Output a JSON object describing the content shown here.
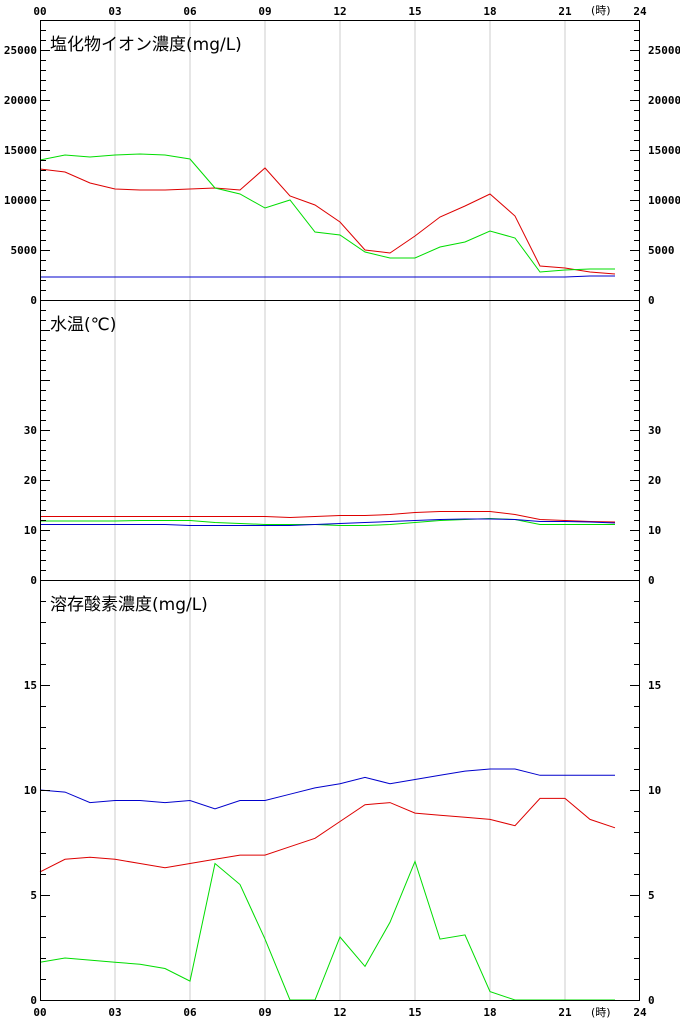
{
  "x_axis": {
    "ticks": [
      "00",
      "03",
      "06",
      "09",
      "12",
      "15",
      "18",
      "21",
      "24"
    ],
    "unit": "(時)",
    "range": [
      0,
      24
    ]
  },
  "colors": {
    "red": "#dd0000",
    "green": "#00dd00",
    "blue": "#0000cc",
    "grid": "#cccccc",
    "axis": "#000000"
  },
  "chart_data": [
    {
      "type": "line",
      "title": "塩化物イオン濃度(mg/L)",
      "xlim": [
        0,
        24
      ],
      "ylim": [
        0,
        28000
      ],
      "yticks": [
        0,
        5000,
        10000,
        15000,
        20000,
        25000
      ],
      "x": [
        0,
        1,
        2,
        3,
        4,
        5,
        6,
        7,
        8,
        9,
        10,
        11,
        12,
        13,
        14,
        15,
        16,
        17,
        18,
        19,
        20,
        21,
        22,
        23
      ],
      "series": [
        {
          "color": "red",
          "values": [
            13100,
            12800,
            11700,
            11100,
            11000,
            11000,
            11100,
            11200,
            11000,
            13200,
            10400,
            9500,
            7800,
            5000,
            4700,
            6400,
            8300,
            9400,
            10600,
            8400,
            3400,
            3200,
            2800,
            2600
          ]
        },
        {
          "color": "green",
          "values": [
            14000,
            14500,
            14300,
            14500,
            14600,
            14500,
            14100,
            11200,
            10600,
            9200,
            10000,
            6800,
            6500,
            4800,
            4200,
            4200,
            5300,
            5800,
            6900,
            6200,
            2800,
            3000,
            3100,
            3100
          ]
        },
        {
          "color": "blue",
          "values": [
            2300,
            2300,
            2300,
            2300,
            2300,
            2300,
            2300,
            2300,
            2300,
            2300,
            2300,
            2300,
            2300,
            2300,
            2300,
            2300,
            2300,
            2300,
            2300,
            2300,
            2300,
            2300,
            2400,
            2400
          ]
        }
      ]
    },
    {
      "type": "line",
      "title": "水温(℃)",
      "xlim": [
        0,
        24
      ],
      "ylim": [
        0,
        56
      ],
      "yticks": [
        0,
        10,
        20,
        30
      ],
      "x": [
        0,
        1,
        2,
        3,
        4,
        5,
        6,
        7,
        8,
        9,
        10,
        11,
        12,
        13,
        14,
        15,
        16,
        17,
        18,
        19,
        20,
        21,
        22,
        23
      ],
      "series": [
        {
          "color": "red",
          "values": [
            12.7,
            12.7,
            12.7,
            12.7,
            12.7,
            12.7,
            12.7,
            12.7,
            12.7,
            12.7,
            12.5,
            12.7,
            12.9,
            12.9,
            13.1,
            13.5,
            13.7,
            13.7,
            13.7,
            13.1,
            12.1,
            11.9,
            11.7,
            11.6
          ]
        },
        {
          "color": "green",
          "values": [
            11.8,
            11.8,
            11.8,
            11.8,
            11.9,
            11.9,
            11.9,
            11.5,
            11.3,
            11.1,
            11.1,
            11.1,
            10.9,
            10.9,
            11.1,
            11.5,
            11.9,
            12.1,
            12.3,
            12.1,
            11.1,
            11.1,
            11.1,
            11.1
          ]
        },
        {
          "color": "blue",
          "values": [
            11.1,
            11.1,
            11.1,
            11.1,
            11.1,
            11.1,
            10.9,
            10.9,
            10.9,
            10.9,
            10.9,
            11.1,
            11.3,
            11.5,
            11.7,
            11.9,
            12.1,
            12.2,
            12.2,
            12.1,
            11.7,
            11.7,
            11.6,
            11.4
          ]
        }
      ]
    },
    {
      "type": "line",
      "title": "溶存酸素濃度(mg/L)",
      "xlim": [
        0,
        24
      ],
      "ylim": [
        0,
        20
      ],
      "yticks": [
        0,
        5,
        10,
        15
      ],
      "x": [
        0,
        1,
        2,
        3,
        4,
        5,
        6,
        7,
        8,
        9,
        10,
        11,
        12,
        13,
        14,
        15,
        16,
        17,
        18,
        19,
        20,
        21,
        22,
        23
      ],
      "series": [
        {
          "color": "red",
          "values": [
            6.1,
            6.7,
            6.8,
            6.7,
            6.5,
            6.3,
            6.5,
            6.7,
            6.9,
            6.9,
            7.3,
            7.7,
            8.5,
            9.3,
            9.4,
            8.9,
            8.8,
            8.7,
            8.6,
            8.3,
            9.6,
            9.6,
            8.6,
            8.2
          ]
        },
        {
          "color": "green",
          "values": [
            1.8,
            2.0,
            1.9,
            1.8,
            1.7,
            1.5,
            0.9,
            6.5,
            5.5,
            2.9,
            0.0,
            0.0,
            3.0,
            1.6,
            3.7,
            6.6,
            2.9,
            3.1,
            0.4,
            0.0,
            0.0,
            0.0,
            0.0,
            0.0
          ]
        },
        {
          "color": "blue",
          "values": [
            10.0,
            9.9,
            9.4,
            9.5,
            9.5,
            9.4,
            9.5,
            9.1,
            9.5,
            9.5,
            9.8,
            10.1,
            10.3,
            10.6,
            10.3,
            10.5,
            10.7,
            10.9,
            11.0,
            11.0,
            10.7,
            10.7,
            10.7,
            10.7
          ]
        }
      ]
    }
  ]
}
